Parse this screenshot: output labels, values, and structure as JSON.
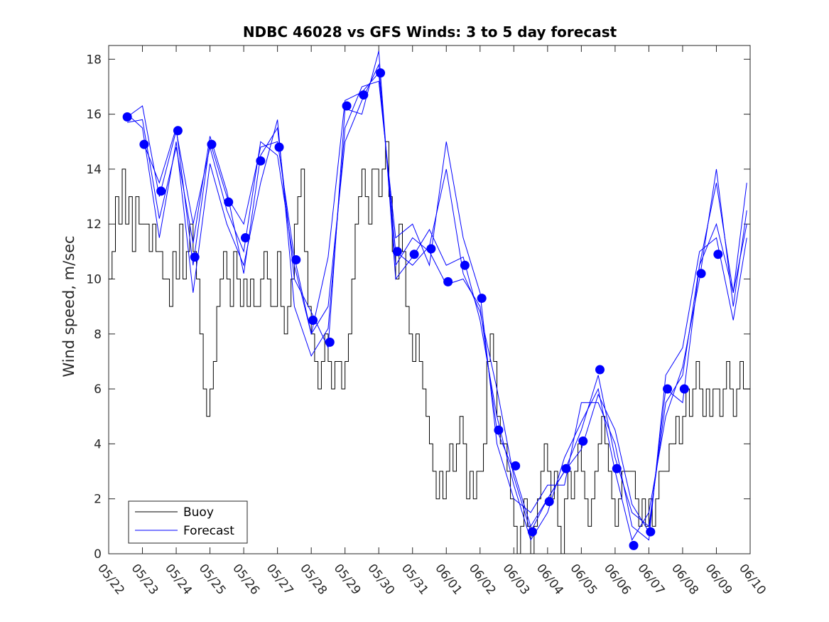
{
  "chart_data": {
    "type": "line",
    "title": "NDBC 46028 vs GFS Winds: 3 to 5 day forecast",
    "xlabel": "",
    "ylabel": "Wind speed, m/sec",
    "xlim": [
      "05/22",
      "06/10"
    ],
    "ylim": [
      0,
      18.5
    ],
    "x_tick_labels": [
      "05/22",
      "05/23",
      "05/24",
      "05/25",
      "05/26",
      "05/27",
      "05/28",
      "05/29",
      "05/30",
      "05/31",
      "06/01",
      "06/02",
      "06/03",
      "06/04",
      "06/05",
      "06/06",
      "06/07",
      "06/08",
      "06/09",
      "06/10"
    ],
    "y_ticks": [
      0,
      2,
      4,
      6,
      8,
      10,
      12,
      14,
      16,
      18
    ],
    "grid": false,
    "legend_position": "bottom-left",
    "colors": {
      "buoy": "#000000",
      "forecast": "#0000ff"
    },
    "series": [
      {
        "name": "Buoy",
        "style": "line",
        "x_days": [
          0.0,
          0.1,
          0.2,
          0.3,
          0.4,
          0.5,
          0.6,
          0.7,
          0.8,
          0.9,
          1.0,
          1.1,
          1.2,
          1.3,
          1.4,
          1.5,
          1.6,
          1.7,
          1.8,
          1.9,
          2.0,
          2.1,
          2.2,
          2.3,
          2.4,
          2.5,
          2.6,
          2.7,
          2.8,
          2.9,
          3.0,
          3.1,
          3.2,
          3.3,
          3.4,
          3.5,
          3.6,
          3.7,
          3.8,
          3.9,
          4.0,
          4.1,
          4.2,
          4.3,
          4.4,
          4.5,
          4.6,
          4.7,
          4.8,
          4.9,
          5.0,
          5.1,
          5.2,
          5.3,
          5.4,
          5.5,
          5.6,
          5.7,
          5.8,
          5.9,
          6.0,
          6.1,
          6.2,
          6.3,
          6.4,
          6.5,
          6.6,
          6.7,
          6.8,
          6.9,
          7.0,
          7.1,
          7.2,
          7.3,
          7.4,
          7.5,
          7.6,
          7.7,
          7.8,
          7.9,
          8.0,
          8.1,
          8.2,
          8.3,
          8.4,
          8.5,
          8.6,
          8.7,
          8.8,
          8.9,
          9.0,
          9.1,
          9.2,
          9.3,
          9.4,
          9.5,
          9.6,
          9.7,
          9.8,
          9.9,
          10.0,
          10.1,
          10.2,
          10.3,
          10.4,
          10.5,
          10.6,
          10.7,
          10.8,
          10.9,
          11.0,
          11.1,
          11.2,
          11.3,
          11.4,
          11.5,
          11.6,
          11.7,
          11.8,
          11.9,
          12.0,
          12.1,
          12.2,
          12.3,
          12.4,
          12.5,
          12.6,
          12.7,
          12.8,
          12.9,
          13.0,
          13.1,
          13.2,
          13.3,
          13.4,
          13.5,
          13.6,
          13.7,
          13.8,
          13.9,
          14.0,
          14.1,
          14.2,
          14.3,
          14.4,
          14.5,
          14.6,
          14.7,
          14.8,
          14.9,
          15.0,
          15.1,
          15.2,
          15.3,
          15.4,
          15.5,
          15.6,
          15.7,
          15.8,
          15.9,
          16.0,
          16.1,
          16.2,
          16.3,
          16.4,
          16.5,
          16.6,
          16.7,
          16.8,
          16.9,
          17.0,
          17.1,
          17.2,
          17.3,
          17.4,
          17.5,
          17.6,
          17.7,
          17.8,
          17.9,
          18.0,
          18.1,
          18.2,
          18.3,
          18.4,
          18.5,
          18.6,
          18.7,
          18.8,
          18.9
        ],
        "values": [
          10,
          11,
          13,
          12,
          14,
          12,
          13,
          11,
          13,
          12,
          12,
          12,
          11,
          12,
          11,
          11,
          10,
          10,
          9,
          11,
          10,
          12,
          10,
          11,
          12,
          11,
          10,
          8,
          6,
          5,
          6,
          7,
          9,
          10,
          11,
          10,
          9,
          11,
          10,
          9,
          10,
          9,
          10,
          9,
          9,
          10,
          11,
          10,
          9,
          9,
          11,
          9,
          8,
          9,
          10,
          12,
          13,
          14,
          11,
          9,
          8,
          7,
          6,
          7,
          8,
          7,
          6,
          7,
          7,
          6,
          7,
          8,
          10,
          12,
          13,
          14,
          13,
          12,
          14,
          14,
          13,
          14,
          15,
          13,
          11,
          10,
          12,
          11,
          9,
          8,
          7,
          8,
          7,
          6,
          5,
          4,
          3,
          2,
          3,
          2,
          3,
          4,
          3,
          4,
          5,
          4,
          2,
          3,
          2,
          3,
          3,
          4,
          7,
          8,
          7,
          5,
          4,
          4,
          3,
          2,
          1,
          0,
          1,
          2,
          1,
          0,
          1,
          2,
          3,
          4,
          3,
          2,
          3,
          1,
          0,
          2,
          3,
          2,
          3,
          4,
          3,
          2,
          1,
          2,
          3,
          4,
          5,
          4,
          3,
          2,
          1,
          2,
          3,
          3,
          3,
          3,
          2,
          1,
          2,
          1,
          2,
          1,
          2,
          3,
          3,
          3,
          4,
          4,
          5,
          4,
          5,
          6,
          5,
          6,
          7,
          6,
          5,
          6,
          5,
          6,
          6,
          5,
          6,
          7,
          6,
          5,
          6,
          7,
          6,
          6
        ]
      },
      {
        "name": "Forecast",
        "style": "lines+markers",
        "marker_points": [
          {
            "x": 0.55,
            "y": 15.9
          },
          {
            "x": 1.05,
            "y": 14.9
          },
          {
            "x": 1.55,
            "y": 13.2
          },
          {
            "x": 2.05,
            "y": 15.4
          },
          {
            "x": 2.55,
            "y": 10.8
          },
          {
            "x": 3.05,
            "y": 14.9
          },
          {
            "x": 3.55,
            "y": 12.8
          },
          {
            "x": 4.05,
            "y": 11.5
          },
          {
            "x": 4.5,
            "y": 14.3
          },
          {
            "x": 5.05,
            "y": 14.8
          },
          {
            "x": 5.55,
            "y": 10.7
          },
          {
            "x": 6.05,
            "y": 8.5
          },
          {
            "x": 6.55,
            "y": 7.7
          },
          {
            "x": 7.05,
            "y": 16.3
          },
          {
            "x": 7.55,
            "y": 16.7
          },
          {
            "x": 8.05,
            "y": 17.5
          },
          {
            "x": 8.55,
            "y": 11.0
          },
          {
            "x": 9.05,
            "y": 10.9
          },
          {
            "x": 9.55,
            "y": 11.1
          },
          {
            "x": 10.05,
            "y": 9.9
          },
          {
            "x": 10.55,
            "y": 10.5
          },
          {
            "x": 11.05,
            "y": 9.3
          },
          {
            "x": 11.55,
            "y": 4.5
          },
          {
            "x": 12.05,
            "y": 3.2
          },
          {
            "x": 12.55,
            "y": 0.8
          },
          {
            "x": 13.05,
            "y": 1.9
          },
          {
            "x": 13.55,
            "y": 3.1
          },
          {
            "x": 14.05,
            "y": 4.1
          },
          {
            "x": 14.55,
            "y": 6.7
          },
          {
            "x": 15.05,
            "y": 3.1
          },
          {
            "x": 15.55,
            "y": 0.3
          },
          {
            "x": 16.05,
            "y": 0.8
          },
          {
            "x": 16.55,
            "y": 6.0
          },
          {
            "x": 17.05,
            "y": 6.0
          },
          {
            "x": 17.55,
            "y": 10.2
          },
          {
            "x": 18.05,
            "y": 10.9
          }
        ],
        "lines": [
          {
            "x_days": [
              0.55,
              1.0,
              1.5,
              2.0,
              2.5,
              3.0,
              3.5,
              4.0,
              4.5,
              5.0,
              5.5,
              6.0,
              6.5,
              7.0,
              7.5,
              8.0,
              8.5,
              9.0,
              9.5,
              10.0,
              10.5,
              11.0,
              11.5,
              12.0,
              12.5,
              13.0,
              13.5,
              14.0,
              14.5,
              15.0,
              15.5,
              16.0,
              16.5,
              17.0,
              17.5,
              18.0,
              18.5,
              18.9
            ],
            "values": [
              15.9,
              16.3,
              13.0,
              15.4,
              12.0,
              14.8,
              12.5,
              11.0,
              15.0,
              14.5,
              10.5,
              8.0,
              9.0,
              15.0,
              16.5,
              17.8,
              10.5,
              11.5,
              11.0,
              9.8,
              10.0,
              9.0,
              4.5,
              3.0,
              1.0,
              2.0,
              3.0,
              4.5,
              6.5,
              3.5,
              1.5,
              1.0,
              5.5,
              6.5,
              10.5,
              13.5,
              9.5,
              13.5
            ]
          },
          {
            "x_days": [
              0.55,
              1.0,
              1.5,
              2.0,
              2.5,
              3.0,
              3.5,
              4.0,
              4.5,
              5.0,
              5.5,
              6.0,
              6.5,
              7.0,
              7.5,
              8.0,
              8.5,
              9.0,
              9.5,
              10.0,
              10.5,
              11.0,
              11.5,
              12.0,
              12.5,
              13.0,
              13.5,
              14.0,
              14.5,
              15.0,
              15.5,
              16.0,
              16.5,
              17.0,
              17.5,
              18.0,
              18.5,
              18.9
            ],
            "values": [
              15.7,
              15.8,
              12.2,
              14.8,
              11.3,
              15.2,
              13.2,
              10.2,
              14.5,
              15.5,
              10.0,
              8.8,
              7.5,
              16.2,
              16.0,
              18.3,
              10.0,
              10.8,
              11.8,
              10.5,
              10.8,
              8.5,
              5.0,
              2.5,
              0.5,
              1.5,
              3.5,
              4.8,
              6.0,
              3.0,
              0.5,
              1.5,
              5.0,
              6.8,
              10.0,
              14.0,
              9.0,
              12.5
            ]
          },
          {
            "x_days": [
              0.55,
              1.0,
              1.5,
              2.0,
              2.5,
              3.0,
              3.5,
              4.0,
              4.5,
              5.0,
              5.5,
              6.0,
              6.5,
              7.0,
              7.5,
              8.0,
              8.5,
              9.0,
              9.5,
              10.0,
              10.5,
              11.0,
              11.5,
              12.0,
              12.5,
              13.0,
              13.5,
              14.0,
              14.5,
              15.0,
              15.5,
              16.0,
              16.5,
              17.0,
              17.5,
              18.0,
              18.5,
              18.9
            ],
            "values": [
              16.0,
              15.5,
              11.5,
              15.0,
              9.5,
              14.2,
              12.0,
              10.5,
              13.5,
              15.8,
              9.0,
              7.2,
              8.2,
              15.5,
              17.0,
              17.2,
              11.5,
              12.0,
              10.5,
              15.0,
              11.5,
              9.5,
              4.0,
              2.0,
              1.5,
              2.5,
              2.5,
              5.5,
              5.5,
              4.0,
              1.0,
              0.5,
              6.5,
              7.5,
              11.0,
              11.5,
              8.5,
              11.5
            ]
          },
          {
            "x_days": [
              1.05,
              1.5,
              2.0,
              2.5,
              3.0,
              3.5,
              4.0,
              4.5,
              5.0,
              5.5,
              6.0,
              6.5,
              7.0,
              7.5,
              8.0,
              8.5,
              9.0,
              9.5,
              10.0,
              10.5,
              11.0,
              11.5,
              12.0,
              12.5,
              13.0,
              13.5,
              14.0,
              14.5,
              15.0,
              15.5,
              16.0,
              16.5,
              17.0,
              17.5,
              18.0,
              18.5,
              18.9
            ],
            "values": [
              14.9,
              13.5,
              15.5,
              10.5,
              15.0,
              13.0,
              12.0,
              14.8,
              15.0,
              10.8,
              8.0,
              10.8,
              16.5,
              16.8,
              17.5,
              11.0,
              10.5,
              11.2,
              14.0,
              10.2,
              8.8,
              6.0,
              2.8,
              0.8,
              2.0,
              3.0,
              3.8,
              5.8,
              4.5,
              1.8,
              0.8,
              6.0,
              5.5,
              10.5,
              12.0,
              9.5,
              12.0
            ]
          }
        ]
      }
    ]
  },
  "legend": {
    "buoy_label": "Buoy",
    "forecast_label": "Forecast"
  }
}
